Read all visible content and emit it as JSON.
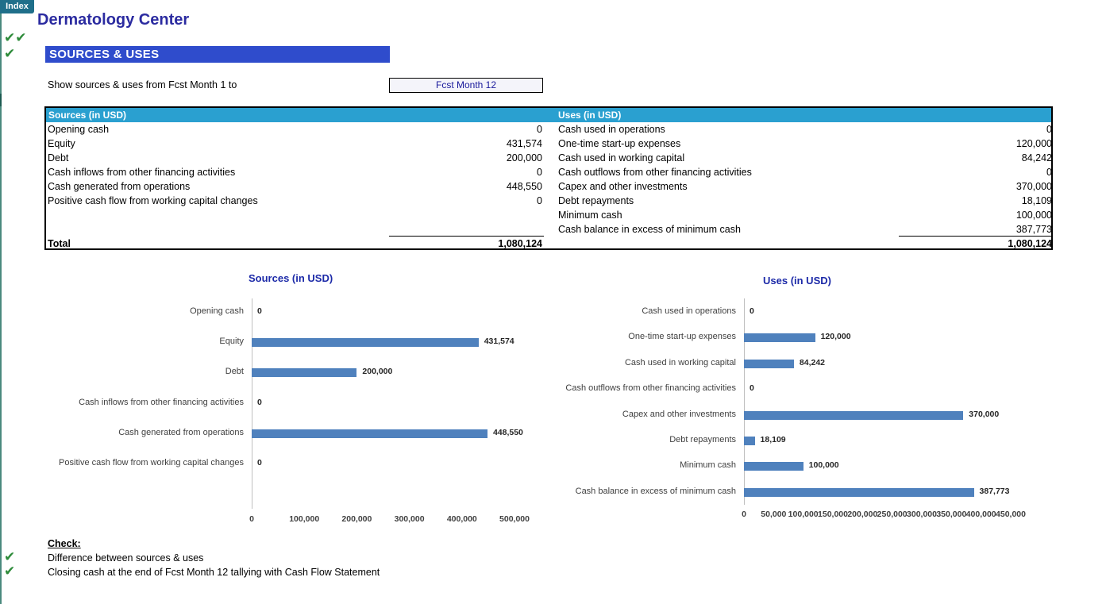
{
  "index_button": "Index",
  "app_title": "Dermatology Center",
  "section_title": "SOURCES & USES",
  "period": {
    "label": "Show sources & uses from Fcst Month 1 to",
    "selected": "Fcst Month 12"
  },
  "table": {
    "sources_header": "Sources (in USD)",
    "uses_header": "Uses (in USD)",
    "sources": [
      {
        "label": "Opening cash",
        "value": "0"
      },
      {
        "label": "Equity",
        "value": "431,574"
      },
      {
        "label": "Debt",
        "value": "200,000"
      },
      {
        "label": "Cash inflows from other financing activities",
        "value": "0"
      },
      {
        "label": "Cash generated from operations",
        "value": "448,550"
      },
      {
        "label": "Positive cash flow from working capital changes",
        "value": "0"
      }
    ],
    "uses": [
      {
        "label": "Cash used in operations",
        "value": "0"
      },
      {
        "label": "One-time start-up expenses",
        "value": "120,000"
      },
      {
        "label": "Cash used in working capital",
        "value": "84,242"
      },
      {
        "label": "Cash outflows from other  financing activities",
        "value": "0"
      },
      {
        "label": "Capex and other investments",
        "value": "370,000"
      },
      {
        "label": "Debt repayments",
        "value": "18,109"
      },
      {
        "label": "Minimum cash",
        "value": "100,000"
      },
      {
        "label": "Cash balance in excess of minimum cash",
        "value": "387,773"
      }
    ],
    "total_label": "Total",
    "sources_total": "1,080,124",
    "uses_total": "1,080,124"
  },
  "chart_data": [
    {
      "type": "bar",
      "orientation": "horizontal",
      "title": "Sources (in USD)",
      "categories": [
        "Opening cash",
        "Equity",
        "Debt",
        "Cash inflows from other financing activities",
        "Cash generated from operations",
        "Positive cash flow from working capital changes"
      ],
      "values": [
        0,
        431574,
        200000,
        0,
        448550,
        0
      ],
      "labels": [
        "0",
        "431,574",
        "200,000",
        "0",
        "448,550",
        "0"
      ],
      "xlim": [
        0,
        500000
      ],
      "ticks": [
        "0",
        "100,000",
        "200,000",
        "300,000",
        "400,000",
        "500,000"
      ],
      "color": "#4f81bd",
      "grid": false
    },
    {
      "type": "bar",
      "orientation": "horizontal",
      "title": "Uses (in USD)",
      "categories": [
        "Cash used in operations",
        "One-time start-up expenses",
        "Cash used in working capital",
        "Cash outflows from other  financing activities",
        "Capex and other investments",
        "Debt repayments",
        "Minimum cash",
        "Cash balance in excess of minimum cash"
      ],
      "values": [
        0,
        120000,
        84242,
        0,
        370000,
        18109,
        100000,
        387773
      ],
      "labels": [
        "0",
        "120,000",
        "84,242",
        "0",
        "370,000",
        "18,109",
        "100,000",
        "387,773"
      ],
      "xlim": [
        0,
        450000
      ],
      "ticks": [
        "0",
        "50,000",
        "100,000",
        "150,000",
        "200,000",
        "250,000",
        "300,000",
        "350,000",
        "400,000",
        "450,000"
      ],
      "color": "#4f81bd",
      "grid": false
    }
  ],
  "checks": {
    "heading": "Check:",
    "items": [
      "Difference between sources & uses",
      "Closing cash at the end of Fcst Month 12 tallying with Cash Flow Statement"
    ]
  },
  "icons": {
    "check": "check-icon",
    "double_check": "double-check-icon",
    "check_color": "#2e8b3a"
  },
  "colors": {
    "title": "#2b2ba0",
    "section_header": "#2f4ccc",
    "table_header": "#2aa0d0",
    "bar": "#4f81bd"
  }
}
